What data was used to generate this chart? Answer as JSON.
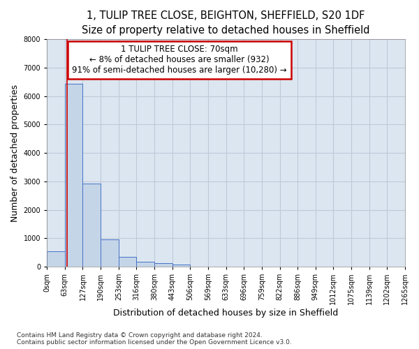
{
  "title_line1": "1, TULIP TREE CLOSE, BEIGHTON, SHEFFIELD, S20 1DF",
  "title_line2": "Size of property relative to detached houses in Sheffield",
  "xlabel": "Distribution of detached houses by size in Sheffield",
  "ylabel": "Number of detached properties",
  "footer_line1": "Contains HM Land Registry data © Crown copyright and database right 2024.",
  "footer_line2": "Contains public sector information licensed under the Open Government Licence v3.0.",
  "bin_labels": [
    "0sqm",
    "63sqm",
    "127sqm",
    "190sqm",
    "253sqm",
    "316sqm",
    "380sqm",
    "443sqm",
    "506sqm",
    "569sqm",
    "633sqm",
    "696sqm",
    "759sqm",
    "822sqm",
    "886sqm",
    "949sqm",
    "1012sqm",
    "1075sqm",
    "1139sqm",
    "1202sqm",
    "1265sqm"
  ],
  "bar_heights": [
    550,
    6430,
    2930,
    960,
    350,
    160,
    110,
    70,
    0,
    0,
    0,
    0,
    0,
    0,
    0,
    0,
    0,
    0,
    0,
    0
  ],
  "bar_color": "#c5d5e8",
  "bar_edge_color": "#4472c4",
  "property_line_label": "1 TULIP TREE CLOSE: 70sqm",
  "annotation_line1": "← 8% of detached houses are smaller (932)",
  "annotation_line2": "91% of semi-detached houses are larger (10,280) →",
  "annotation_box_color": "#ffffff",
  "annotation_box_edge": "#cc0000",
  "vline_color": "#cc0000",
  "vline_x_bar_index": 1.11,
  "ylim": [
    0,
    8000
  ],
  "yticks": [
    0,
    1000,
    2000,
    3000,
    4000,
    5000,
    6000,
    7000,
    8000
  ],
  "grid_color": "#c0c8d8",
  "plot_bg_color": "#dce6f1",
  "title_fontsize": 10.5,
  "subtitle_fontsize": 9.5,
  "axis_label_fontsize": 9,
  "tick_fontsize": 7,
  "annotation_fontsize": 8.5,
  "footer_fontsize": 6.5
}
